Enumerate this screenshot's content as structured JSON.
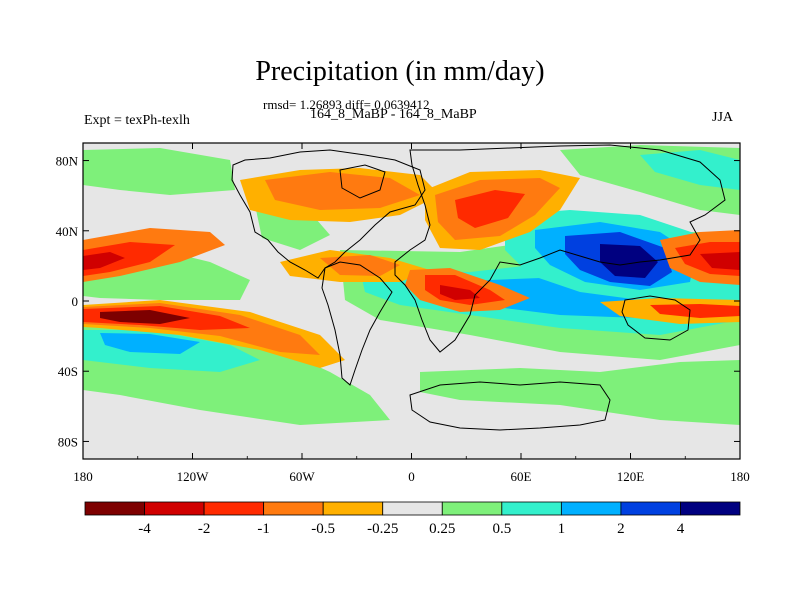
{
  "title": "Precipitation (in mm/day)",
  "stats": "rmsd= 1.26893 diff= 0.0639412",
  "periods": "164_8_MaBP - 164_8_MaBP",
  "experiment": "Expt = texPh-texlh",
  "season": "JJA",
  "map": {
    "projection": "cylindrical-equidistant",
    "background_color": "#e6e6e6",
    "lon_ticks": [
      "180",
      "120W",
      "60W",
      "0",
      "60E",
      "120E",
      "180"
    ],
    "lat_ticks": [
      "80N",
      "40N",
      "0",
      "40S",
      "80S"
    ]
  },
  "colorbar": {
    "labels": [
      "-4",
      "-2",
      "-1",
      "-0.5",
      "-0.25",
      "0.25",
      "0.5",
      "1",
      "2",
      "4"
    ],
    "colors": [
      "#7d0000",
      "#d00000",
      "#ff2a00",
      "#ff7a10",
      "#ffb000",
      "#e6e6e6",
      "#7ef07a",
      "#33f0cc",
      "#00b0ff",
      "#0040e0",
      "#000080"
    ]
  }
}
